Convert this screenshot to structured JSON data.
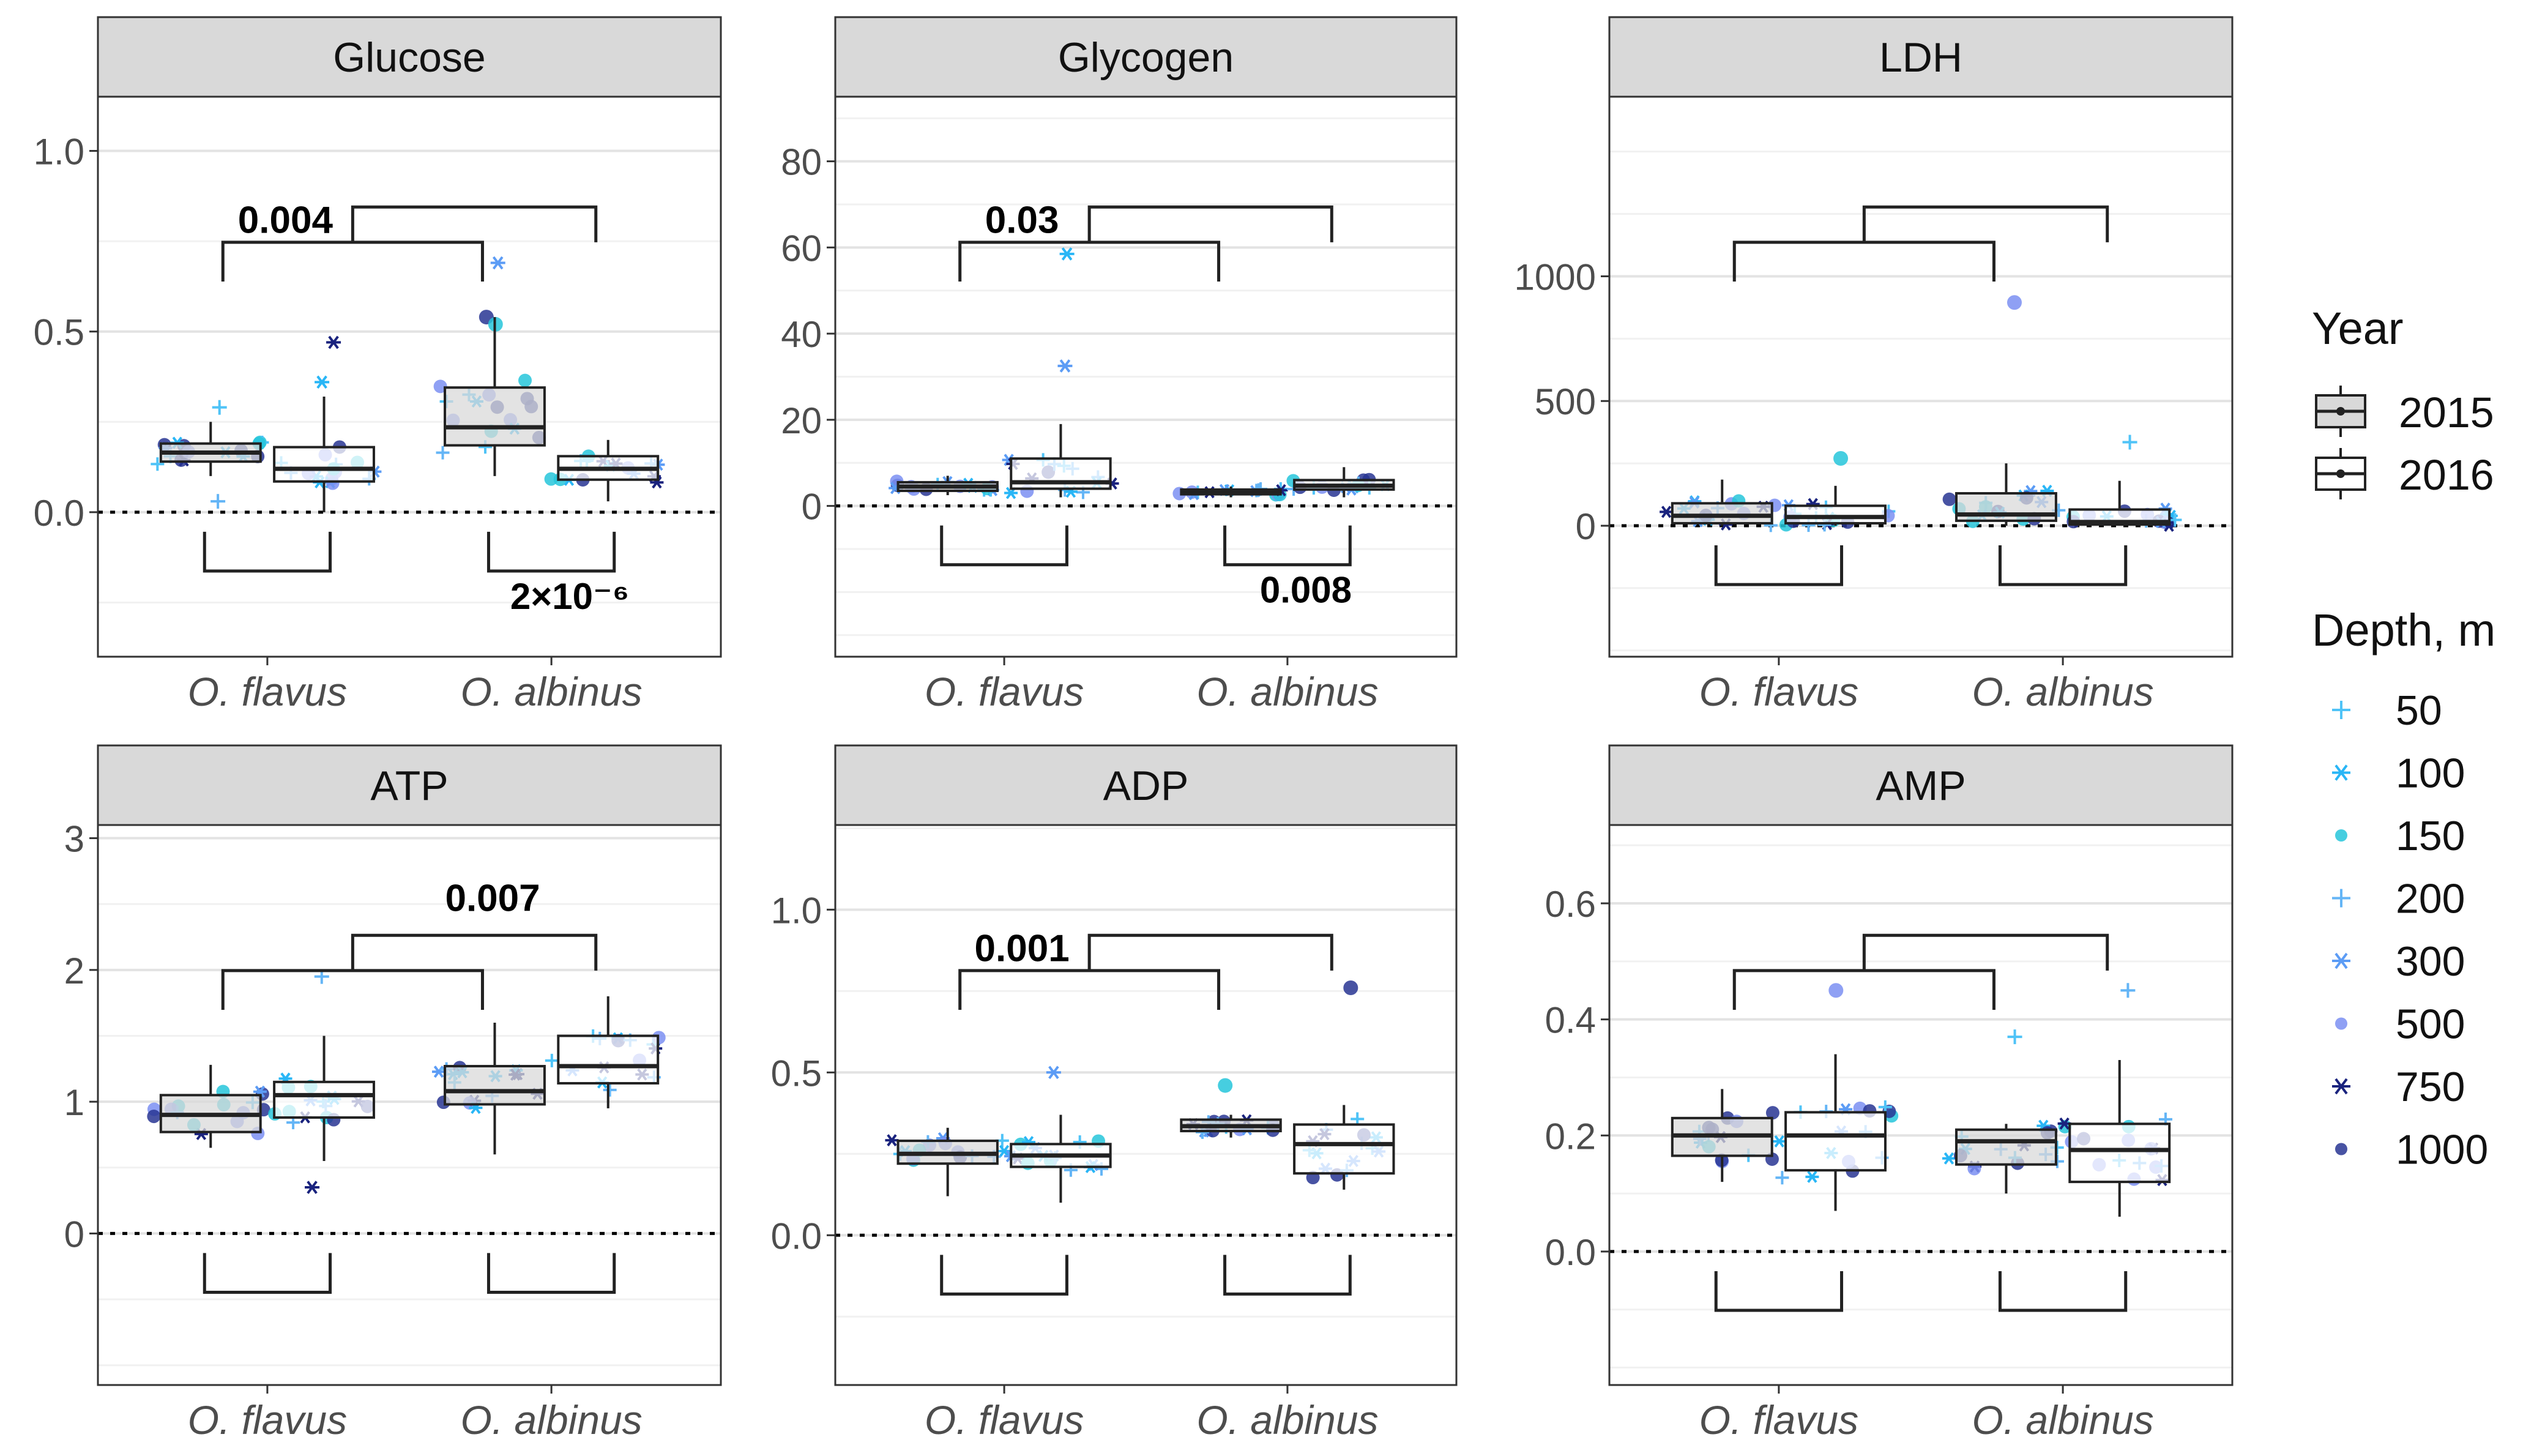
{
  "figure_title": "",
  "legend": {
    "year_title": "Year",
    "years": [
      {
        "label": "2015",
        "fill": "#d9d9d9"
      },
      {
        "label": "2016",
        "fill": "#ffffff"
      }
    ],
    "depth_title": "Depth, m",
    "depths": [
      {
        "label": "50",
        "color": "#4fc3f7",
        "shape": "plus"
      },
      {
        "label": "100",
        "color": "#29b6f6",
        "shape": "asterisk"
      },
      {
        "label": "150",
        "color": "#26c6da",
        "shape": "dot"
      },
      {
        "label": "200",
        "color": "#64b5f6",
        "shape": "plus"
      },
      {
        "label": "300",
        "color": "#5c9cf5",
        "shape": "asterisk"
      },
      {
        "label": "500",
        "color": "#7b8ff2",
        "shape": "dot"
      },
      {
        "label": "750",
        "color": "#1a237e",
        "shape": "asterisk"
      },
      {
        "label": "1000",
        "color": "#283593",
        "shape": "dot"
      }
    ]
  },
  "chart_data": [
    {
      "type": "box",
      "title": "Glucose",
      "categories": [
        "O. flavus",
        "O. albinus"
      ],
      "ylim": [
        -0.4,
        1.15
      ],
      "yticks": [
        0.0,
        0.5,
        1.0
      ],
      "ytick_labels": [
        "0.0",
        "0.5",
        "1.0"
      ],
      "boxes": [
        {
          "species": "O. flavus",
          "year": "2015",
          "q1": 0.14,
          "median": 0.165,
          "q3": 0.19,
          "low": 0.1,
          "high": 0.25
        },
        {
          "species": "O. flavus",
          "year": "2016",
          "q1": 0.085,
          "median": 0.12,
          "q3": 0.18,
          "low": 0.0,
          "high": 0.32
        },
        {
          "species": "O. albinus",
          "year": "2015",
          "q1": 0.185,
          "median": 0.235,
          "q3": 0.345,
          "low": 0.1,
          "high": 0.54
        },
        {
          "species": "O. albinus",
          "year": "2016",
          "q1": 0.09,
          "median": 0.12,
          "q3": 0.155,
          "low": 0.03,
          "high": 0.2
        }
      ],
      "outliers": [
        {
          "species": "O. flavus",
          "year": "2015",
          "value": 0.29
        },
        {
          "species": "O. flavus",
          "year": "2015",
          "value": 0.03
        },
        {
          "species": "O. flavus",
          "year": "2016",
          "value": 0.47
        },
        {
          "species": "O. flavus",
          "year": "2016",
          "value": 0.36
        },
        {
          "species": "O. albinus",
          "year": "2015",
          "value": 0.69
        },
        {
          "species": "O. albinus",
          "year": "2015",
          "value": 0.54
        },
        {
          "species": "O. albinus",
          "year": "2015",
          "value": 0.52
        }
      ],
      "brackets": [
        {
          "kind": "species",
          "label": "0.004"
        },
        {
          "kind": "year_flavus",
          "label": ""
        },
        {
          "kind": "year_albinus",
          "label": "2×10⁻⁶"
        }
      ]
    },
    {
      "type": "box",
      "title": "Glycogen",
      "categories": [
        "O. flavus",
        "O. albinus"
      ],
      "ylim": [
        -35,
        95
      ],
      "yticks": [
        0,
        20,
        40,
        60,
        80
      ],
      "ytick_labels": [
        "0",
        "20",
        "40",
        "60",
        "80"
      ],
      "boxes": [
        {
          "species": "O. flavus",
          "year": "2015",
          "q1": 3.5,
          "median": 4.5,
          "q3": 5.5,
          "low": 2.5,
          "high": 7
        },
        {
          "species": "O. flavus",
          "year": "2016",
          "q1": 4,
          "median": 5.5,
          "q3": 11,
          "low": 2,
          "high": 19
        }
      ],
      "boxes_more": [
        {
          "species": "O. albinus",
          "year": "2015",
          "q1": 2.7,
          "median": 3.2,
          "q3": 3.8,
          "low": 2,
          "high": 4.5
        },
        {
          "species": "O. albinus",
          "year": "2016",
          "q1": 3.8,
          "median": 4.7,
          "q3": 6,
          "low": 2,
          "high": 9
        }
      ],
      "outliers": [
        {
          "species": "O. flavus",
          "year": "2016",
          "value": 58.5
        },
        {
          "species": "O. flavus",
          "year": "2016",
          "value": 32.5
        }
      ],
      "brackets": [
        {
          "kind": "species",
          "label": "0.03"
        },
        {
          "kind": "year_flavus",
          "label": ""
        },
        {
          "kind": "year_albinus",
          "label": "0.008"
        }
      ]
    },
    {
      "type": "box",
      "title": "LDH",
      "categories": [
        "O. flavus",
        "O. albinus"
      ],
      "ylim": [
        -525,
        1720
      ],
      "yticks": [
        0,
        500,
        1000
      ],
      "ytick_labels": [
        "0",
        "500",
        "1000"
      ],
      "boxes": [
        {
          "species": "O. flavus",
          "year": "2015",
          "q1": 10,
          "median": 40,
          "q3": 90,
          "low": 0,
          "high": 185
        },
        {
          "species": "O. flavus",
          "year": "2016",
          "q1": 10,
          "median": 35,
          "q3": 80,
          "low": 0,
          "high": 160
        },
        {
          "species": "O. albinus",
          "year": "2015",
          "q1": 20,
          "median": 45,
          "q3": 130,
          "low": 0,
          "high": 250
        },
        {
          "species": "O. albinus",
          "year": "2016",
          "q1": 5,
          "median": 15,
          "q3": 65,
          "low": 0,
          "high": 180
        }
      ],
      "outliers": [
        {
          "species": "O. flavus",
          "year": "2016",
          "value": 270
        },
        {
          "species": "O. albinus",
          "year": "2015",
          "value": 895
        },
        {
          "species": "O. albinus",
          "year": "2016",
          "value": 335
        }
      ],
      "brackets": [
        {
          "kind": "species",
          "label": ""
        },
        {
          "kind": "year_flavus",
          "label": ""
        },
        {
          "kind": "year_albinus",
          "label": ""
        }
      ]
    },
    {
      "type": "box",
      "title": "ATP",
      "categories": [
        "O. flavus",
        "O. albinus"
      ],
      "ylim": [
        -1.15,
        3.1
      ],
      "yticks": [
        0,
        1,
        2,
        3
      ],
      "ytick_labels": [
        "0",
        "1",
        "2",
        "3"
      ],
      "boxes": [
        {
          "species": "O. flavus",
          "year": "2015",
          "q1": 0.77,
          "median": 0.9,
          "q3": 1.05,
          "low": 0.65,
          "high": 1.28
        },
        {
          "species": "O. flavus",
          "year": "2016",
          "q1": 0.88,
          "median": 1.05,
          "q3": 1.15,
          "low": 0.55,
          "high": 1.5
        },
        {
          "species": "O. albinus",
          "year": "2015",
          "q1": 0.98,
          "median": 1.08,
          "q3": 1.27,
          "low": 0.6,
          "high": 1.6
        },
        {
          "species": "O. albinus",
          "year": "2016",
          "q1": 1.14,
          "median": 1.27,
          "q3": 1.5,
          "low": 0.95,
          "high": 1.8
        }
      ],
      "outliers": [
        {
          "species": "O. flavus",
          "year": "2016",
          "value": 1.95
        },
        {
          "species": "O. flavus",
          "year": "2016",
          "value": 0.35
        }
      ],
      "brackets": [
        {
          "kind": "species",
          "label": "0.007"
        },
        {
          "kind": "year_flavus",
          "label": ""
        },
        {
          "kind": "year_albinus",
          "label": ""
        }
      ]
    },
    {
      "type": "box",
      "title": "ADP",
      "categories": [
        "O. flavus",
        "O. albinus"
      ],
      "ylim": [
        -0.46,
        1.26
      ],
      "yticks": [
        0.0,
        0.5,
        1.0
      ],
      "ytick_labels": [
        "0.0",
        "0.5",
        "1.0"
      ],
      "boxes": [
        {
          "species": "O. flavus",
          "year": "2015",
          "q1": 0.22,
          "median": 0.25,
          "q3": 0.29,
          "low": 0.12,
          "high": 0.33
        },
        {
          "species": "O. flavus",
          "year": "2016",
          "q1": 0.21,
          "median": 0.245,
          "q3": 0.28,
          "low": 0.1,
          "high": 0.37
        },
        {
          "species": "O. albinus",
          "year": "2015",
          "q1": 0.32,
          "median": 0.335,
          "q3": 0.355,
          "low": 0.3,
          "high": 0.37
        },
        {
          "species": "O. albinus",
          "year": "2016",
          "q1": 0.19,
          "median": 0.28,
          "q3": 0.34,
          "low": 0.14,
          "high": 0.4
        }
      ],
      "outliers": [
        {
          "species": "O. flavus",
          "year": "2016",
          "value": 0.5
        },
        {
          "species": "O. albinus",
          "year": "2016",
          "value": 0.76
        },
        {
          "species": "O. albinus",
          "year": "2015",
          "value": 0.46
        }
      ],
      "brackets": [
        {
          "kind": "species",
          "label": "0.001"
        },
        {
          "kind": "year_flavus",
          "label": ""
        },
        {
          "kind": "year_albinus",
          "label": ""
        }
      ]
    },
    {
      "type": "box",
      "title": "AMP",
      "categories": [
        "O. flavus",
        "O. albinus"
      ],
      "ylim": [
        -0.23,
        0.735
      ],
      "yticks": [
        0.0,
        0.2,
        0.4,
        0.6
      ],
      "ytick_labels": [
        "0.0",
        "0.2",
        "0.4",
        "0.6"
      ],
      "boxes": [
        {
          "species": "O. flavus",
          "year": "2015",
          "q1": 0.165,
          "median": 0.2,
          "q3": 0.23,
          "low": 0.12,
          "high": 0.28
        },
        {
          "species": "O. flavus",
          "year": "2016",
          "q1": 0.14,
          "median": 0.2,
          "q3": 0.24,
          "low": 0.07,
          "high": 0.34
        },
        {
          "species": "O. albinus",
          "year": "2015",
          "q1": 0.15,
          "median": 0.19,
          "q3": 0.21,
          "low": 0.1,
          "high": 0.22
        },
        {
          "species": "O. albinus",
          "year": "2016",
          "q1": 0.12,
          "median": 0.175,
          "q3": 0.22,
          "low": 0.06,
          "high": 0.33
        }
      ],
      "outliers": [
        {
          "species": "O. flavus",
          "year": "2016",
          "value": 0.45
        },
        {
          "species": "O. albinus",
          "year": "2015",
          "value": 0.37
        },
        {
          "species": "O. albinus",
          "year": "2016",
          "value": 0.45
        }
      ],
      "brackets": [
        {
          "kind": "species",
          "label": ""
        },
        {
          "kind": "year_flavus",
          "label": ""
        },
        {
          "kind": "year_albinus",
          "label": ""
        }
      ]
    }
  ]
}
